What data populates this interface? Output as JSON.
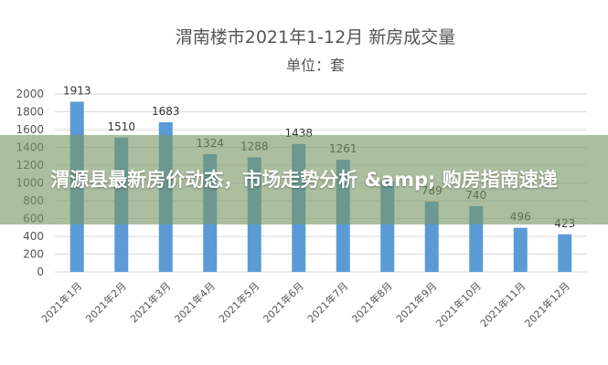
{
  "colors": {
    "bar": "#5b9bd5",
    "grid": "#d9d9d9",
    "text": "#595959",
    "banner_bg": "#7a9664"
  },
  "banner": {
    "text": "渭源县最新房价动态，市场走势分析 &amp; 购房指南速递"
  },
  "chart_data": {
    "type": "bar",
    "title": "渭南楼市2021年1-12月 新房成交量",
    "subtitle": "单位：套",
    "xlabel": "",
    "ylabel": "",
    "ylim": [
      0,
      2000
    ],
    "yticks": [
      0,
      200,
      400,
      600,
      800,
      1000,
      1200,
      1400,
      1600,
      1800,
      2000
    ],
    "grid": true,
    "categories": [
      "2021年1月",
      "2021年2月",
      "2021年3月",
      "2021年4月",
      "2021年5月",
      "2021年6月",
      "2021年7月",
      "2021年8月",
      "2021年9月",
      "2021年10月",
      "2021年11月",
      "2021年12月"
    ],
    "values": [
      1913,
      1510,
      1683,
      1324,
      1288,
      1438,
      1261,
      1020,
      789,
      740,
      496,
      423
    ],
    "data_labels": [
      "1913",
      "1510",
      "1683",
      "1324",
      "1288",
      "1438",
      "1261",
      "",
      "789",
      "740",
      "496",
      "423"
    ]
  }
}
